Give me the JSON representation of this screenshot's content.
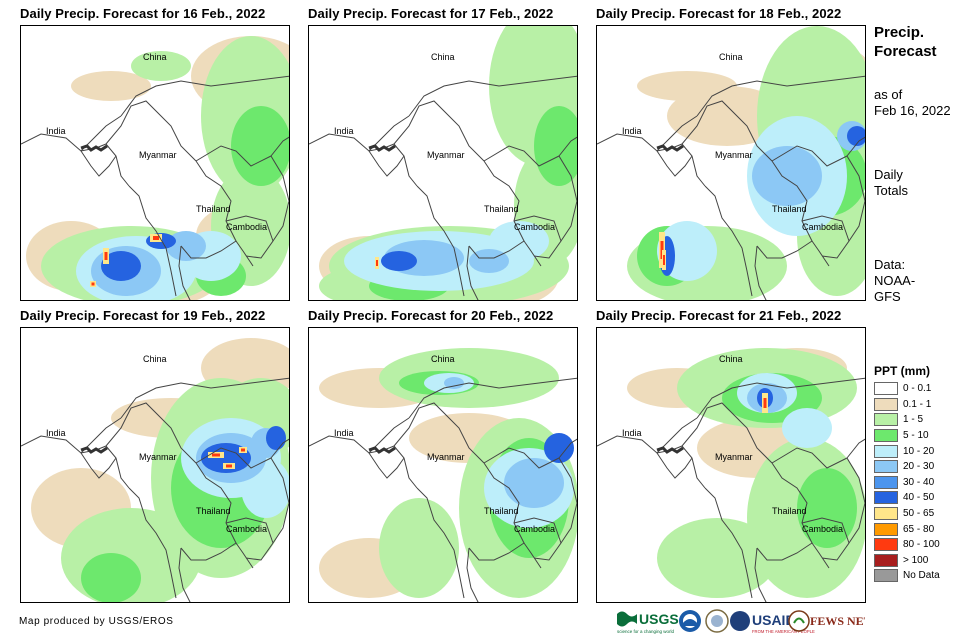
{
  "panels": [
    {
      "title": "Daily Precip. Forecast for 16 Feb., 2022"
    },
    {
      "title": "Daily Precip. Forecast for 17 Feb., 2022"
    },
    {
      "title": "Daily Precip. Forecast for 18 Feb., 2022"
    },
    {
      "title": "Daily Precip. Forecast for 19 Feb., 2022"
    },
    {
      "title": "Daily Precip. Forecast for 20 Feb., 2022"
    },
    {
      "title": "Daily Precip. Forecast for 21 Feb., 2022"
    }
  ],
  "country_labels": {
    "china": "China",
    "india": "India",
    "myanmar": "Myanmar",
    "thailand": "Thailand",
    "cambodia": "Cambodia"
  },
  "side": {
    "title_line1": "Precip.",
    "title_line2": "Forecast",
    "asof_line1": "as of",
    "asof_line2": "Feb 16, 2022",
    "totals_line1": "Daily",
    "totals_line2": "Totals",
    "data_line1": "Data:",
    "data_line2": "NOAA-",
    "data_line3": "GFS"
  },
  "legend": {
    "title": "PPT (mm)",
    "items": [
      {
        "label": "0 - 0.1",
        "color": "#ffffff"
      },
      {
        "label": "0.1 - 1",
        "color": "#eedcbc"
      },
      {
        "label": "1 - 5",
        "color": "#b8f0a6"
      },
      {
        "label": "5 - 10",
        "color": "#6de86d"
      },
      {
        "label": "10 - 20",
        "color": "#bdeefa"
      },
      {
        "label": "20 - 30",
        "color": "#8cc8f5"
      },
      {
        "label": "30 - 40",
        "color": "#4c95ee"
      },
      {
        "label": "40 - 50",
        "color": "#2563e0"
      },
      {
        "label": "50 - 65",
        "color": "#ffe68a"
      },
      {
        "label": "65 - 80",
        "color": "#ff9a00"
      },
      {
        "label": "80 - 100",
        "color": "#ff3a10"
      },
      {
        "label": "> 100",
        "color": "#a81e1e"
      },
      {
        "label": "No Data",
        "color": "#999999"
      }
    ]
  },
  "footer": {
    "credit": "Map produced by USGS/EROS",
    "logos": {
      "usgs": "USGS",
      "usgs_tagline": "science for a changing world",
      "usaid": "USAID",
      "usaid_tagline": "FROM THE AMERICAN PEOPLE",
      "fewsnet": "FEWS NET",
      "noaa": "NOAA",
      "doi": "DOI"
    }
  }
}
